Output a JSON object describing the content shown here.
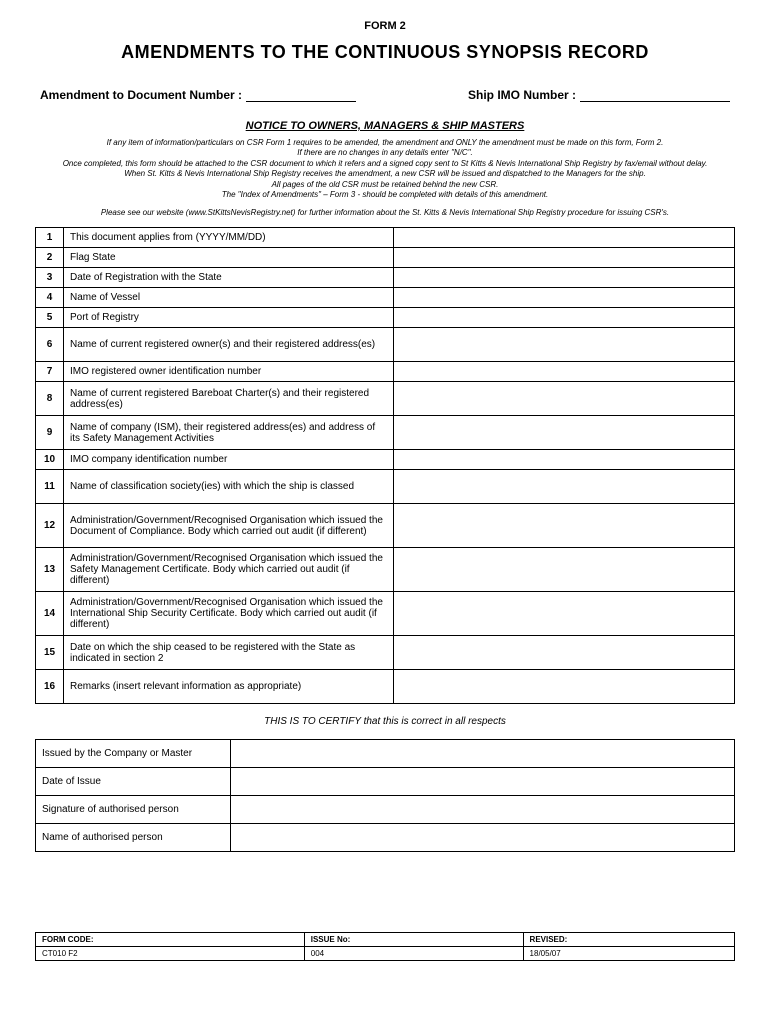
{
  "form_header": "FORM 2",
  "main_title": "AMENDMENTS TO THE CONTINUOUS SYNOPSIS RECORD",
  "fields": {
    "doc_number_label": "Amendment to Document Number :",
    "imo_number_label": "Ship IMO Number :"
  },
  "notice": {
    "title": "NOTICE TO OWNERS, MANAGERS & SHIP MASTERS",
    "line1": "If any item of information/particulars on CSR Form 1 requires to be amended, the amendment and ONLY the amendment must be made on this form, Form 2.",
    "line2": "If there are no changes in any details enter \"N/C\".",
    "line3": "Once completed, this form should be attached to the CSR document to which it refers and a signed copy sent to St Kitts & Nevis International Ship Registry by fax/email without delay.",
    "line4": "When St. Kitts & Nevis International Ship Registry receives the amendment, a new CSR will be issued and dispatched to the Managers for the ship.",
    "line5": "All pages of the old CSR must be retained behind the new CSR.",
    "line6": "The \"Index of Amendments\" – Form 3 - should be completed with details of this amendment.",
    "website": "Please see our website (www.StKittsNevisRegistry.net) for further information about the St. Kitts & Nevis International Ship Registry procedure for issuing CSR's."
  },
  "rows": [
    {
      "n": "1",
      "desc": "This document applies from (YYYY/MM/DD)",
      "cls": "short"
    },
    {
      "n": "2",
      "desc": "Flag State",
      "cls": "short"
    },
    {
      "n": "3",
      "desc": "Date of Registration with the State",
      "cls": "short"
    },
    {
      "n": "4",
      "desc": "Name of Vessel",
      "cls": "short"
    },
    {
      "n": "5",
      "desc": "Port of Registry",
      "cls": "short"
    },
    {
      "n": "6",
      "desc": "Name of current registered owner(s) and their registered address(es)",
      "cls": "tall"
    },
    {
      "n": "7",
      "desc": "IMO registered owner identification number",
      "cls": "short"
    },
    {
      "n": "8",
      "desc": "Name of current registered Bareboat Charter(s) and their registered address(es)",
      "cls": "tall"
    },
    {
      "n": "9",
      "desc": "Name of company (ISM), their registered address(es) and address of its Safety Management Activities",
      "cls": "tall"
    },
    {
      "n": "10",
      "desc": "IMO company identification number",
      "cls": "short"
    },
    {
      "n": "11",
      "desc": "Name of classification society(ies) with which the ship is classed",
      "cls": "tall"
    },
    {
      "n": "12",
      "desc": "Administration/Government/Recognised Organisation which issued the Document of Compliance.\nBody which carried out audit (if different)",
      "cls": "taller"
    },
    {
      "n": "13",
      "desc": "Administration/Government/Recognised Organisation which issued the Safety Management Certificate.\nBody which carried out audit (if different)",
      "cls": "taller"
    },
    {
      "n": "14",
      "desc": "Administration/Government/Recognised Organisation which issued the International Ship Security Certificate.\nBody which carried out audit (if different)",
      "cls": "taller"
    },
    {
      "n": "15",
      "desc": "Date on which the ship ceased to be registered with the State as indicated in section 2",
      "cls": "tall"
    },
    {
      "n": "16",
      "desc": "Remarks (insert relevant information as appropriate)",
      "cls": "tall"
    }
  ],
  "cert_text": "THIS IS TO CERTIFY that this is correct in all respects",
  "sig_rows": [
    "Issued by the Company or Master",
    "Date of Issue",
    "Signature of authorised person",
    "Name of authorised person"
  ],
  "footer": {
    "code_label": "FORM CODE:",
    "code_val": "CT010 F2",
    "issue_label": "ISSUE No:",
    "issue_val": "004",
    "revised_label": "REVISED:",
    "revised_val": "18/05/07"
  }
}
